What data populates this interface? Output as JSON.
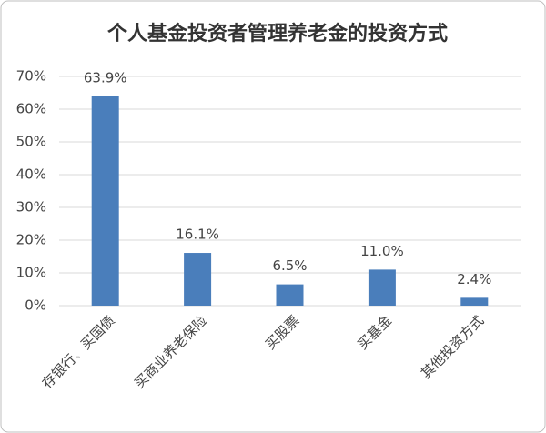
{
  "chart_data": {
    "type": "bar",
    "title": "个人基金投资者管理养老金的投资方式",
    "categories": [
      "存银行、买国债",
      "买商业养老保险",
      "买股票",
      "买基金",
      "其他投资方式"
    ],
    "values": [
      63.9,
      16.1,
      6.5,
      11.0,
      2.4
    ],
    "value_labels": [
      "63.9%",
      "16.1%",
      "6.5%",
      "11.0%",
      "2.4%"
    ],
    "color": "#4a7ebb",
    "ylim": [
      0,
      70
    ],
    "yticks": [
      {
        "value": 0,
        "label": "0%"
      },
      {
        "value": 10,
        "label": "10%"
      },
      {
        "value": 20,
        "label": "20%"
      },
      {
        "value": 30,
        "label": "30%"
      },
      {
        "value": 40,
        "label": "40%"
      },
      {
        "value": 50,
        "label": "50%"
      },
      {
        "value": 60,
        "label": "60%"
      },
      {
        "value": 70,
        "label": "70%"
      }
    ],
    "grid": true
  }
}
